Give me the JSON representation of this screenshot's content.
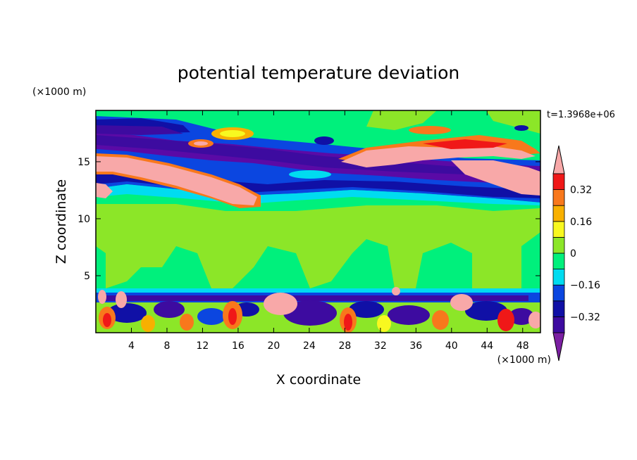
{
  "chart_data": {
    "type": "heatmap",
    "title": "potential temperature deviation",
    "xlabel": "X coordinate",
    "ylabel": "Z coordinate",
    "x_units": "(×1000 m)",
    "y_units": "(×1000 m)",
    "time_label": "t=1.3968e+06",
    "xlim": [
      0,
      50
    ],
    "ylim": [
      0,
      19.5
    ],
    "x_ticks": [
      4,
      8,
      12,
      16,
      20,
      24,
      28,
      32,
      36,
      40,
      44,
      48
    ],
    "y_ticks": [
      5,
      10,
      15
    ],
    "colorbar": {
      "levels": [
        -0.4,
        -0.32,
        -0.24,
        -0.16,
        -0.08,
        0,
        0.08,
        0.16,
        0.24,
        0.32,
        0.4
      ],
      "tick_labels": [
        "0.32",
        "0.16",
        "0",
        "−0.16",
        "−0.32"
      ],
      "tick_values": [
        0.32,
        0.16,
        0,
        -0.16,
        -0.32
      ],
      "colors": [
        "#7b1fa2",
        "#3d0ba0",
        "#1010a6",
        "#0b46e0",
        "#00dcf0",
        "#00f07c",
        "#8ce628",
        "#f8f820",
        "#f8b000",
        "#f8781c",
        "#f01818",
        "#f8a8a8"
      ]
    },
    "field_notes": {
      "upper_cold_layer": "purple band near z≈14–18",
      "upper_warm_layers": "pink tongues near z≈12–16 and z≈15–18",
      "lower_turbulent_layer": "mixed warm/cold cells below z≈4",
      "mid_troposphere": "mostly 0 to 0.08 (green)"
    }
  }
}
